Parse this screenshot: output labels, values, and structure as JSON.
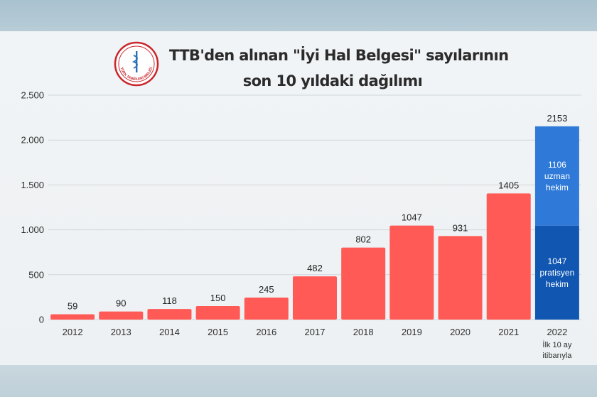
{
  "header": {
    "title_line1": "TTB'den alınan \"İyi Hal Belgesi\" sayılarının",
    "title_line2": "son 10 yıldaki dağılımı",
    "logo_text": "TÜRK TABİPLERİ BİRLİĞİ"
  },
  "colors": {
    "bar": "#ff5a55",
    "stack_top": "#2f7ad8",
    "stack_bottom": "#1157b2",
    "grid": "#cfd6da"
  },
  "chart_data": {
    "type": "bar",
    "title": "TTB'den alınan \"İyi Hal Belgesi\" sayılarının son 10 yıldaki dağılımı",
    "xlabel": "",
    "ylabel": "",
    "ylim": [
      0,
      2500
    ],
    "yticks": [
      0,
      500,
      1000,
      1500,
      2000,
      2500
    ],
    "ytick_labels": [
      "0",
      "500",
      "1.000",
      "1.500",
      "2.000",
      "2.500"
    ],
    "grid": true,
    "categories": [
      "2012",
      "2013",
      "2014",
      "2015",
      "2016",
      "2017",
      "2018",
      "2019",
      "2020",
      "2021",
      "2022"
    ],
    "values": [
      59,
      90,
      118,
      150,
      245,
      482,
      802,
      1047,
      931,
      1405,
      2153
    ],
    "stacked_last": {
      "category": "2022",
      "note": [
        "İlk 10 ay",
        "itibarıyla"
      ],
      "total": 2153,
      "segments": [
        {
          "value": 1047,
          "lines": [
            "1047",
            "pratisyen",
            "hekim"
          ]
        },
        {
          "value": 1106,
          "lines": [
            "1106",
            "uzman",
            "hekim"
          ]
        }
      ]
    }
  }
}
